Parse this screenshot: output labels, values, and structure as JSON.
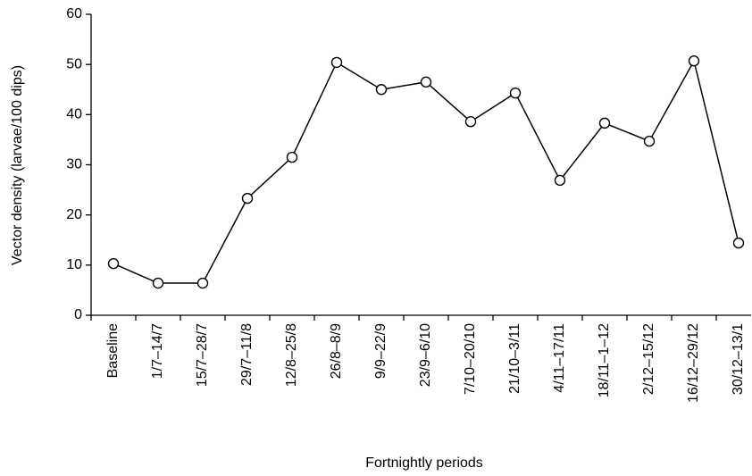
{
  "chart_data": {
    "type": "line",
    "x_label": "Fortnightly periods",
    "y_label": "Vector density (larvae/100 dips)",
    "categories": [
      "Baseline",
      "1/7–14/7",
      "15/7–28/7",
      "29/7–11/8",
      "12/8–25/8",
      "26/8–8/9",
      "9/9–22/9",
      "23/9–6/10",
      "7/10–20/10",
      "21/10–3/11",
      "4/11–17/11",
      "18/11–1–12",
      "2/12–15/12",
      "16/12–29/12",
      "30/12–13/1"
    ],
    "series": [
      {
        "name": "Vector density",
        "color": "#000000",
        "values": [
          10.3,
          6.4,
          6.4,
          23.3,
          31.5,
          50.4,
          45,
          46.5,
          38.6,
          44.3,
          26.9,
          38.3,
          34.7,
          50.7,
          14.4
        ]
      }
    ],
    "ylim": [
      0,
      60
    ],
    "yticks": [
      0,
      10,
      20,
      30,
      40,
      50,
      60
    ],
    "grid": false
  }
}
